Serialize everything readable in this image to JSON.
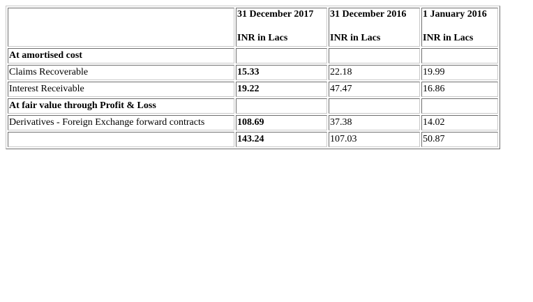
{
  "table": {
    "headers": [
      {
        "date": "31 December 2017",
        "unit": "INR in Lacs"
      },
      {
        "date": "31 December 2016",
        "unit": "INR in Lacs"
      },
      {
        "date": "1 January 2016",
        "unit": "INR in Lacs"
      }
    ],
    "rows": [
      {
        "label": "At amortised cost",
        "values": [
          "",
          "",
          ""
        ],
        "section": true
      },
      {
        "label": "Claims Recoverable",
        "values": [
          "15.33",
          "22.18",
          "19.99"
        ],
        "section": false
      },
      {
        "label": "Interest Receivable",
        "values": [
          "19.22",
          "47.47",
          "16.86"
        ],
        "section": false
      },
      {
        "label": "At fair value through Profit & Loss",
        "values": [
          "",
          "",
          ""
        ],
        "section": true
      },
      {
        "label": "Derivatives - Foreign Exchange forward contracts",
        "values": [
          "108.69",
          "37.38",
          "14.02"
        ],
        "section": false
      },
      {
        "label": "",
        "values": [
          "143.24",
          "107.03",
          "50.87"
        ],
        "section": false
      }
    ]
  }
}
